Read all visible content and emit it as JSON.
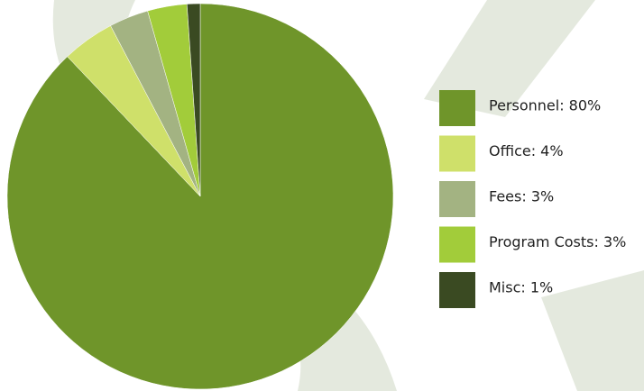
{
  "chart_data": {
    "type": "pie",
    "categories": [
      "Personnel: 80%",
      "Office: 4%",
      "Fees: 3%",
      "Program Costs: 3%",
      "Misc: 1%"
    ],
    "values": [
      80,
      4,
      3,
      3,
      1
    ],
    "colors": [
      "#6f952a",
      "#cfe06a",
      "#a3b382",
      "#a2cc3a",
      "#3a4a22"
    ],
    "legend": "right"
  }
}
